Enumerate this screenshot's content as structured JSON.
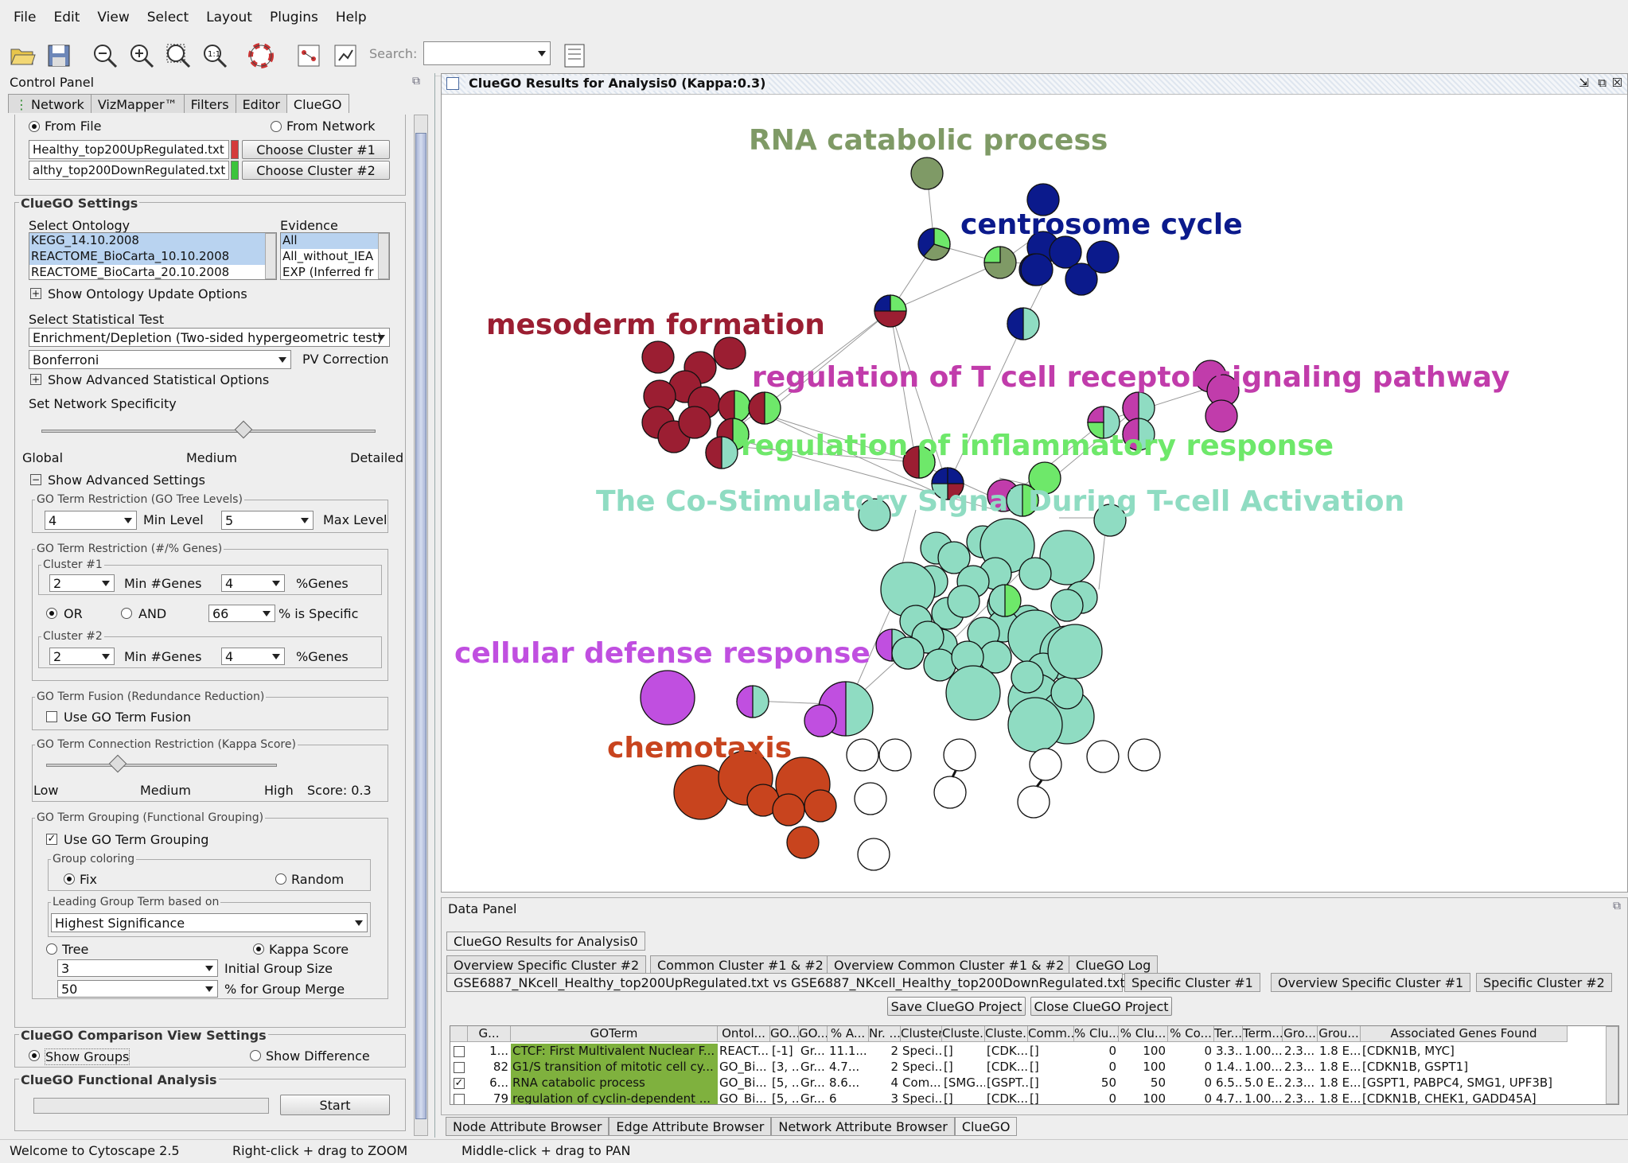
{
  "menu": [
    "File",
    "Edit",
    "View",
    "Select",
    "Layout",
    "Plugins",
    "Help"
  ],
  "toolbar": {
    "search_label": "Search:",
    "search_value": ""
  },
  "control_panel": {
    "title": "Control Panel",
    "tabs": [
      "Network",
      "VizMapper™",
      "Filters",
      "Editor",
      "ClueGO"
    ],
    "from_file": "From File",
    "from_network": "From Network",
    "file1": "Healthy_top200UpRegulated.txt",
    "file2": "althy_top200DownRegulated.txt",
    "choose1": "Choose Cluster #1",
    "choose2": "Choose Cluster #2",
    "settings_title": "ClueGO Settings",
    "select_ontology": "Select Ontology",
    "evidence": "Evidence",
    "ontologies": [
      "KEGG_14.10.2008",
      "REACTOME_BioCarta_10.10.2008",
      "REACTOME_BioCarta_20.10.2008"
    ],
    "evidences": [
      "All",
      "All_without_IEA",
      "EXP (Inferred fr"
    ],
    "show_update": "Show Ontology Update Options",
    "select_test": "Select Statistical Test",
    "test": "Enrichment/Depletion (Two-sided hypergeometric test)",
    "correction": "Bonferroni",
    "pv_correction": "PV Correction",
    "show_adv_stat": "Show Advanced Statistical Options",
    "specificity": "Set Network Specificity",
    "global": "Global",
    "medium": "Medium",
    "detailed": "Detailed",
    "show_adv": "Show Advanced Settings",
    "go_levels": "GO Term Restriction (GO Tree Levels)",
    "min_level_val": "4",
    "min_level": "Min Level",
    "max_level_val": "5",
    "max_level": "Max Level",
    "go_genes": "GO Term Restriction (#/% Genes)",
    "cluster1": "Cluster #1",
    "cluster2": "Cluster #2",
    "min_genes_val": "2",
    "min_genes": "Min #Genes",
    "pct_val": "4",
    "pct_genes": "%Genes",
    "or": "OR",
    "and": "AND",
    "specific_val": "66",
    "specific": "% is Specific",
    "fusion_title": "GO Term Fusion (Redundance Reduction)",
    "use_fusion": "Use GO Term Fusion",
    "kappa_title": "GO Term Connection Restriction (Kappa Score)",
    "low": "Low",
    "high": "High",
    "score": "Score: 0.3",
    "grouping_title": "GO Term Grouping (Functional Grouping)",
    "use_grouping": "Use GO Term Grouping",
    "group_coloring": "Group coloring",
    "fix": "Fix",
    "random": "Random",
    "leading": "Leading Group Term based on",
    "leading_val": "Highest Significance",
    "tree": "Tree",
    "kappa": "Kappa Score",
    "init_size_val": "3",
    "init_size": "Initial Group Size",
    "merge_val": "50",
    "merge": "% for Group Merge",
    "comparison_title": "ClueGO Comparison View Settings",
    "show_groups": "Show Groups",
    "show_difference": "Show Difference",
    "functional_title": "ClueGO Functional Analysis",
    "start": "Start"
  },
  "network": {
    "title": "ClueGO Results for Analysis0 (Kappa:0.3)",
    "labels": {
      "rna": "RNA catabolic process",
      "centrosome": "centrosome cycle",
      "mesoderm": "mesoderm formation",
      "tcell": "regulation of T cell receptor signaling pathway",
      "inflammatory": "regulation of inflammatory response",
      "costim": "The Co-Stimulatory Signal During T-cell Activation",
      "defense": "cellular defense response",
      "chemotaxis": "chemotaxis"
    },
    "colors": {
      "rna": "#7f9a66",
      "centrosome": "#0b1a8c",
      "mesoderm": "#9b1e32",
      "tcell": "#c13cab",
      "inflammatory": "#6ee86a",
      "costim": "#8fdcc2",
      "defense": "#c04fe0",
      "chemotaxis": "#c8441e"
    }
  },
  "data_panel": {
    "title": "Data Panel",
    "main_tab": "ClueGO Results for Analysis0",
    "tabs_row1": [
      "Overview Specific Cluster #2",
      "Common Cluster #1 & #2",
      "Overview Common Cluster #1 & #2",
      "ClueGO Log"
    ],
    "tabs_row2": [
      "GSE6887_NKcell_Healthy_top200UpRegulated.txt vs GSE6887_NKcell_Healthy_top200DownRegulated.txt",
      "Specific Cluster #1",
      "Overview Specific Cluster #1",
      "Specific Cluster #2"
    ],
    "save": "Save ClueGO Project",
    "close": "Close ClueGO Project",
    "headers": [
      "G...",
      "GOTerm",
      "Ontol...",
      "GO...",
      "GO...",
      "% A...",
      "Nr. ...",
      "Cluster",
      "Cluste...",
      "Cluste...",
      "Comm...",
      "% Clu...",
      "% Clu...",
      "% Co...",
      "Ter...",
      "Term...",
      "Gro...",
      "Grou...",
      "Associated Genes Found"
    ],
    "rows": [
      {
        "checked": false,
        "cells": [
          "1...",
          "CTCF: First Multivalent Nuclear F...",
          "REACT...",
          "[-1]",
          "Gr...",
          "11.1...",
          "2",
          "Speci...",
          "[]",
          "[CDK...",
          "[]",
          "0",
          "100",
          "0",
          "3.3...",
          "1.00...",
          "2.3...",
          "1.8 E...",
          "[CDKN1B, MYC]"
        ]
      },
      {
        "checked": false,
        "cells": [
          "82",
          "G1/S transition of mitotic cell cy...",
          "GO_Bi...",
          "[3, ...",
          "Gr...",
          "4.7...",
          "2",
          "Speci...",
          "[]",
          "[CDK...",
          "[]",
          "0",
          "100",
          "0",
          "1.4...",
          "1.00...",
          "2.3...",
          "1.8 E...",
          "[CDKN1B, GSPT1]"
        ]
      },
      {
        "checked": true,
        "cells": [
          "6...",
          "RNA catabolic process",
          "GO_Bi...",
          "[5, ...",
          "Gr...",
          "8.6...",
          "4",
          "Com...",
          "[SMG...",
          "[GSPT...",
          "[]",
          "50",
          "50",
          "0",
          "6.5...",
          "5.0 E...",
          "2.3...",
          "1.8 E...",
          "[GSPT1, PABPC4, SMG1, UPF3B]"
        ]
      },
      {
        "checked": false,
        "cells": [
          "79",
          "regulation of cyclin-dependent ...",
          "GO_Bi...",
          "[5, ...",
          "Gr...",
          "6",
          "3",
          "Speci...",
          "[]",
          "[CDK...",
          "[]",
          "0",
          "100",
          "0",
          "4.7...",
          "1.00...",
          "2.3...",
          "1.8 E...",
          "[CDKN1B, CHEK1, GADD45A]"
        ]
      }
    ]
  },
  "bottom_tabs": [
    "Node Attribute Browser",
    "Edge Attribute Browser",
    "Network Attribute Browser",
    "ClueGO"
  ],
  "status": {
    "welcome": "Welcome to Cytoscape 2.5",
    "zoom": "Right-click + drag  to  ZOOM",
    "pan": "Middle-click + drag  to  PAN"
  }
}
